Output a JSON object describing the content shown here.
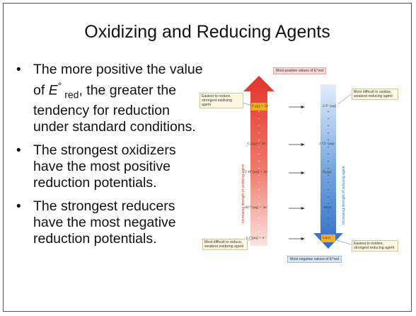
{
  "title": "Oxidizing and Reducing Agents",
  "bullet_marker": "•",
  "bullets": {
    "b1": {
      "pre": "The more positive the value of ",
      "e": "E",
      "deg": "°",
      "sub": " red",
      "post": ", the greater the tendency for reduction under standard conditions."
    },
    "b2": "The strongest oxidizers have the most positive reduction potentials.",
    "b3": "The strongest reducers have the most negative reduction potentials."
  },
  "figure": {
    "top_label": "Most positive values of E°red",
    "bottom_label": "Most negative values of E°red",
    "left_top_note": "Easiest to reduce, strongest oxidizing agent",
    "left_bottom_note": "Most difficult to reduce, weakest oxidizing agent",
    "right_top_note": "Most difficult to oxidize, weakest reducing agent",
    "right_bottom_note": "Easiest to oxidize, strongest reducing agent",
    "left_axis": "Increasing strength of oxidizing agent",
    "right_axis": "Increasing strength of reducing agent",
    "rows": [
      {
        "ox": "F₂(g) + 2e⁻",
        "red": "2 F⁻(aq)"
      },
      {
        "ox": "Cl₂(g) + 2e⁻",
        "red": "2 Cl⁻(aq)"
      },
      {
        "ox": "2 H⁺(aq) + 2e⁻",
        "red": "H₂(g)"
      },
      {
        "ox": "Al³⁺(aq) + 3e⁻",
        "red": "Al(s)"
      },
      {
        "ox": "Li⁺(aq) + e⁻",
        "red": "Li(s)"
      }
    ],
    "colors": {
      "red_arrow": "#e2342a",
      "blue_arrow": "#2f6fc4",
      "highlight": "#f2b21e"
    }
  }
}
